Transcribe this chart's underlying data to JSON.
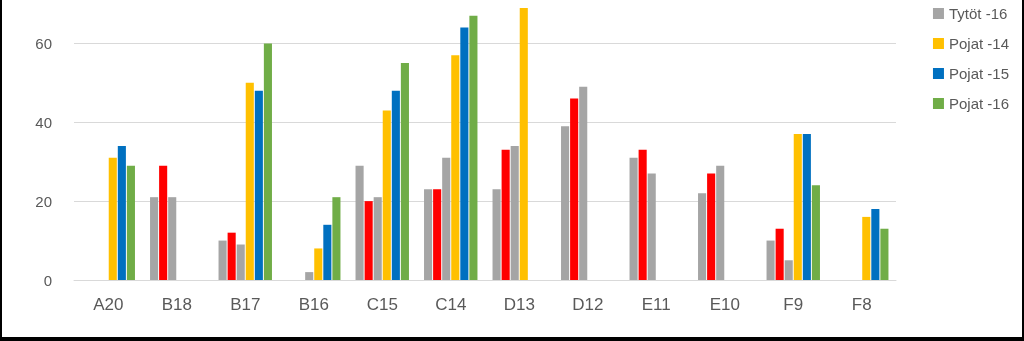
{
  "chart_data": {
    "type": "bar",
    "categories": [
      "A20",
      "B18",
      "B17",
      "B16",
      "C15",
      "C14",
      "D13",
      "D12",
      "E11",
      "E10",
      "F9",
      "F8"
    ],
    "series": [
      {
        "color": "#a5a5a5",
        "values": [
          null,
          21,
          10,
          null,
          29,
          23,
          23,
          39,
          31,
          22,
          10,
          null
        ]
      },
      {
        "color": "#ff0000",
        "values": [
          null,
          29,
          12,
          null,
          20,
          23,
          33,
          46,
          33,
          27,
          13,
          null
        ]
      },
      {
        "name": "Tytöt -16",
        "color": "#a5a5a5",
        "values": [
          null,
          21,
          9,
          2,
          21,
          31,
          34,
          49,
          27,
          29,
          5,
          null
        ]
      },
      {
        "name": "Pojat -14",
        "color": "#ffc000",
        "values": [
          31,
          null,
          50,
          8,
          43,
          57,
          69,
          null,
          null,
          null,
          37,
          16
        ]
      },
      {
        "name": "Pojat -15",
        "color": "#0070c0",
        "values": [
          34,
          null,
          48,
          14,
          48,
          64,
          null,
          null,
          null,
          null,
          37,
          18
        ]
      },
      {
        "name": "Pojat -16",
        "color": "#70ad47",
        "values": [
          29,
          null,
          60,
          21,
          55,
          67,
          null,
          null,
          null,
          null,
          24,
          13
        ]
      }
    ],
    "ylim": [
      0,
      71
    ],
    "yticks": [
      0,
      20,
      40,
      60
    ],
    "grid": "y",
    "legend": "top right"
  }
}
